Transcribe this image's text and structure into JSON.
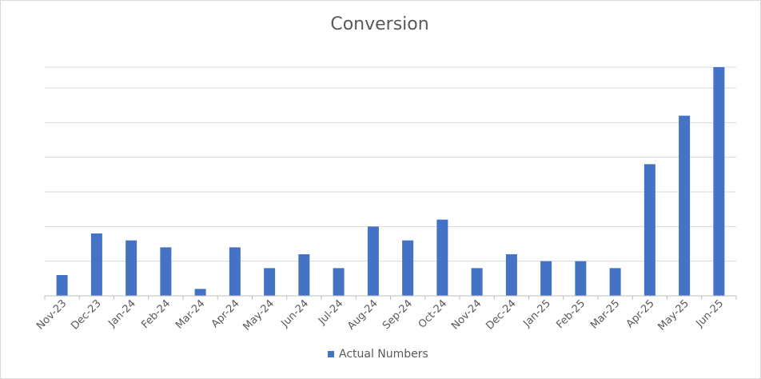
{
  "chart_data": {
    "type": "bar",
    "title": "Conversion",
    "xlabel": "",
    "ylabel": "",
    "ylim": [
      0,
      33
    ],
    "grid": true,
    "legend_position": "bottom",
    "categories": [
      "Nov-23",
      "Dec-23",
      "Jan-24",
      "Feb-24",
      "Mar-24",
      "Apr-24",
      "May-24",
      "Jun-24",
      "Jul-24",
      "Aug-24",
      "Sep-24",
      "Oct-24",
      "Nov-24",
      "Dec-24",
      "Jan-25",
      "Feb-25",
      "Mar-25",
      "Apr-25",
      "May-25",
      "Jun-25"
    ],
    "series": [
      {
        "name": "Actual Numbers",
        "color": "#4472C4",
        "values": [
          3,
          9,
          8,
          7,
          1,
          7,
          4,
          6,
          4,
          10,
          8,
          11,
          4,
          6,
          5,
          5,
          4,
          19,
          26,
          33
        ]
      }
    ]
  }
}
